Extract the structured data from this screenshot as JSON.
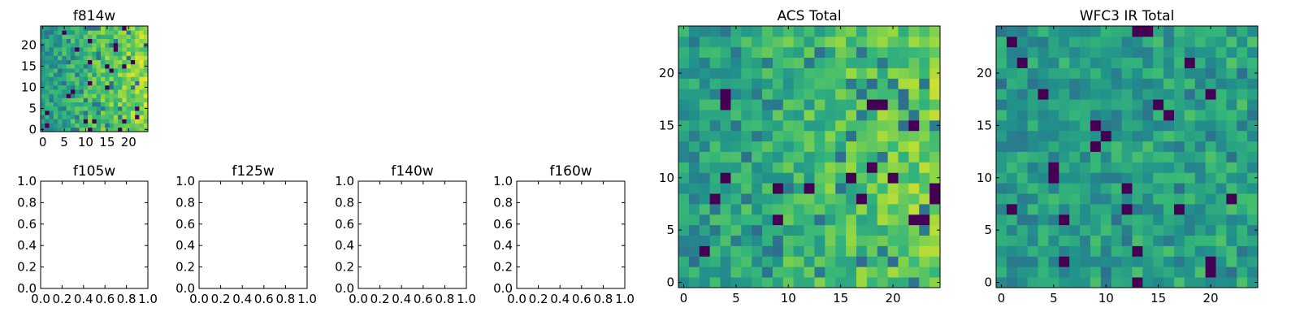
{
  "chart_data": [
    {
      "id": "f814w",
      "type": "heatmap",
      "title": "f814w",
      "grid": false,
      "xlim": [
        -0.5,
        24.5
      ],
      "ylim": [
        -0.5,
        24.5
      ],
      "xticks": [
        0,
        5,
        10,
        15,
        20
      ],
      "xtick_labels": [
        "0",
        "5",
        "10",
        "15",
        "20"
      ],
      "yticks": [
        0,
        5,
        10,
        15,
        20
      ],
      "ytick_labels": [
        "0",
        "5",
        "10",
        "15",
        "20"
      ],
      "colormap": [
        "#440154",
        "#31688e",
        "#21918c",
        "#35b779",
        "#90d743",
        "#fde725"
      ],
      "matrix": {
        "rows": 25,
        "cols": 25,
        "seed": 11,
        "trend": 0.35,
        "dark_rate": 0.04,
        "note": "pixel intensity 0-1, brighter toward right edge"
      }
    },
    {
      "id": "f105w",
      "type": "empty",
      "title": "f105w",
      "xlim": [
        0,
        1
      ],
      "ylim": [
        0,
        1
      ],
      "xticks": [
        0,
        0.2,
        0.4,
        0.6,
        0.8,
        1.0
      ],
      "xtick_labels": [
        "0.0",
        "0.2",
        "0.4",
        "0.6",
        "0.8",
        "1.0"
      ],
      "yticks": [
        0,
        0.2,
        0.4,
        0.6,
        0.8,
        1.0
      ],
      "ytick_labels": [
        "0.0",
        "0.2",
        "0.4",
        "0.6",
        "0.8",
        "1.0"
      ]
    },
    {
      "id": "f125w",
      "type": "empty",
      "title": "f125w",
      "xlim": [
        0,
        1
      ],
      "ylim": [
        0,
        1
      ],
      "xticks": [
        0,
        0.2,
        0.4,
        0.6,
        0.8,
        1.0
      ],
      "xtick_labels": [
        "0.0",
        "0.2",
        "0.4",
        "0.6",
        "0.8",
        "1.0"
      ],
      "yticks": [
        0,
        0.2,
        0.4,
        0.6,
        0.8,
        1.0
      ],
      "ytick_labels": [
        "0.0",
        "0.2",
        "0.4",
        "0.6",
        "0.8",
        "1.0"
      ]
    },
    {
      "id": "f140w",
      "type": "empty",
      "title": "f140w",
      "xlim": [
        0,
        1
      ],
      "ylim": [
        0,
        1
      ],
      "xticks": [
        0,
        0.2,
        0.4,
        0.6,
        0.8,
        1.0
      ],
      "xtick_labels": [
        "0.0",
        "0.2",
        "0.4",
        "0.6",
        "0.8",
        "1.0"
      ],
      "yticks": [
        0,
        0.2,
        0.4,
        0.6,
        0.8,
        1.0
      ],
      "ytick_labels": [
        "0.0",
        "0.2",
        "0.4",
        "0.6",
        "0.8",
        "1.0"
      ]
    },
    {
      "id": "f160w",
      "type": "empty",
      "title": "f160w",
      "xlim": [
        0,
        1
      ],
      "ylim": [
        0,
        1
      ],
      "xticks": [
        0,
        0.2,
        0.4,
        0.6,
        0.8,
        1.0
      ],
      "xtick_labels": [
        "0.0",
        "0.2",
        "0.4",
        "0.6",
        "0.8",
        "1.0"
      ],
      "yticks": [
        0,
        0.2,
        0.4,
        0.6,
        0.8,
        1.0
      ],
      "ytick_labels": [
        "0.0",
        "0.2",
        "0.4",
        "0.6",
        "0.8",
        "1.0"
      ]
    },
    {
      "id": "acs-total",
      "type": "heatmap",
      "title": "ACS Total",
      "grid": false,
      "xlim": [
        -0.5,
        24.5
      ],
      "ylim": [
        -0.5,
        24.5
      ],
      "xticks": [
        0,
        5,
        10,
        15,
        20
      ],
      "xtick_labels": [
        "0",
        "5",
        "10",
        "15",
        "20"
      ],
      "yticks": [
        0,
        5,
        10,
        15,
        20
      ],
      "ytick_labels": [
        "0",
        "5",
        "10",
        "15",
        "20"
      ],
      "colormap": [
        "#440154",
        "#31688e",
        "#21918c",
        "#35b779",
        "#90d743",
        "#fde725"
      ],
      "matrix": {
        "rows": 25,
        "cols": 25,
        "seed": 23,
        "trend": 0.3,
        "dark_rate": 0.03,
        "note": "pixel intensity 0-1, brighter toward right edge"
      }
    },
    {
      "id": "wfc3-ir-total",
      "type": "heatmap",
      "title": "WFC3 IR Total",
      "grid": false,
      "xlim": [
        -0.5,
        24.5
      ],
      "ylim": [
        -0.5,
        24.5
      ],
      "xticks": [
        0,
        5,
        10,
        15,
        20
      ],
      "xtick_labels": [
        "0",
        "5",
        "10",
        "15",
        "20"
      ],
      "yticks": [
        0,
        5,
        10,
        15,
        20
      ],
      "ytick_labels": [
        "0",
        "5",
        "10",
        "15",
        "20"
      ],
      "colormap": [
        "#440154",
        "#31688e",
        "#21918c",
        "#35b779",
        "#90d743",
        "#fde725"
      ],
      "matrix": {
        "rows": 25,
        "cols": 25,
        "seed": 37,
        "trend": 0.05,
        "dark_rate": 0.035,
        "note": "pixel intensity 0-1, no horizontal gradient"
      }
    }
  ]
}
